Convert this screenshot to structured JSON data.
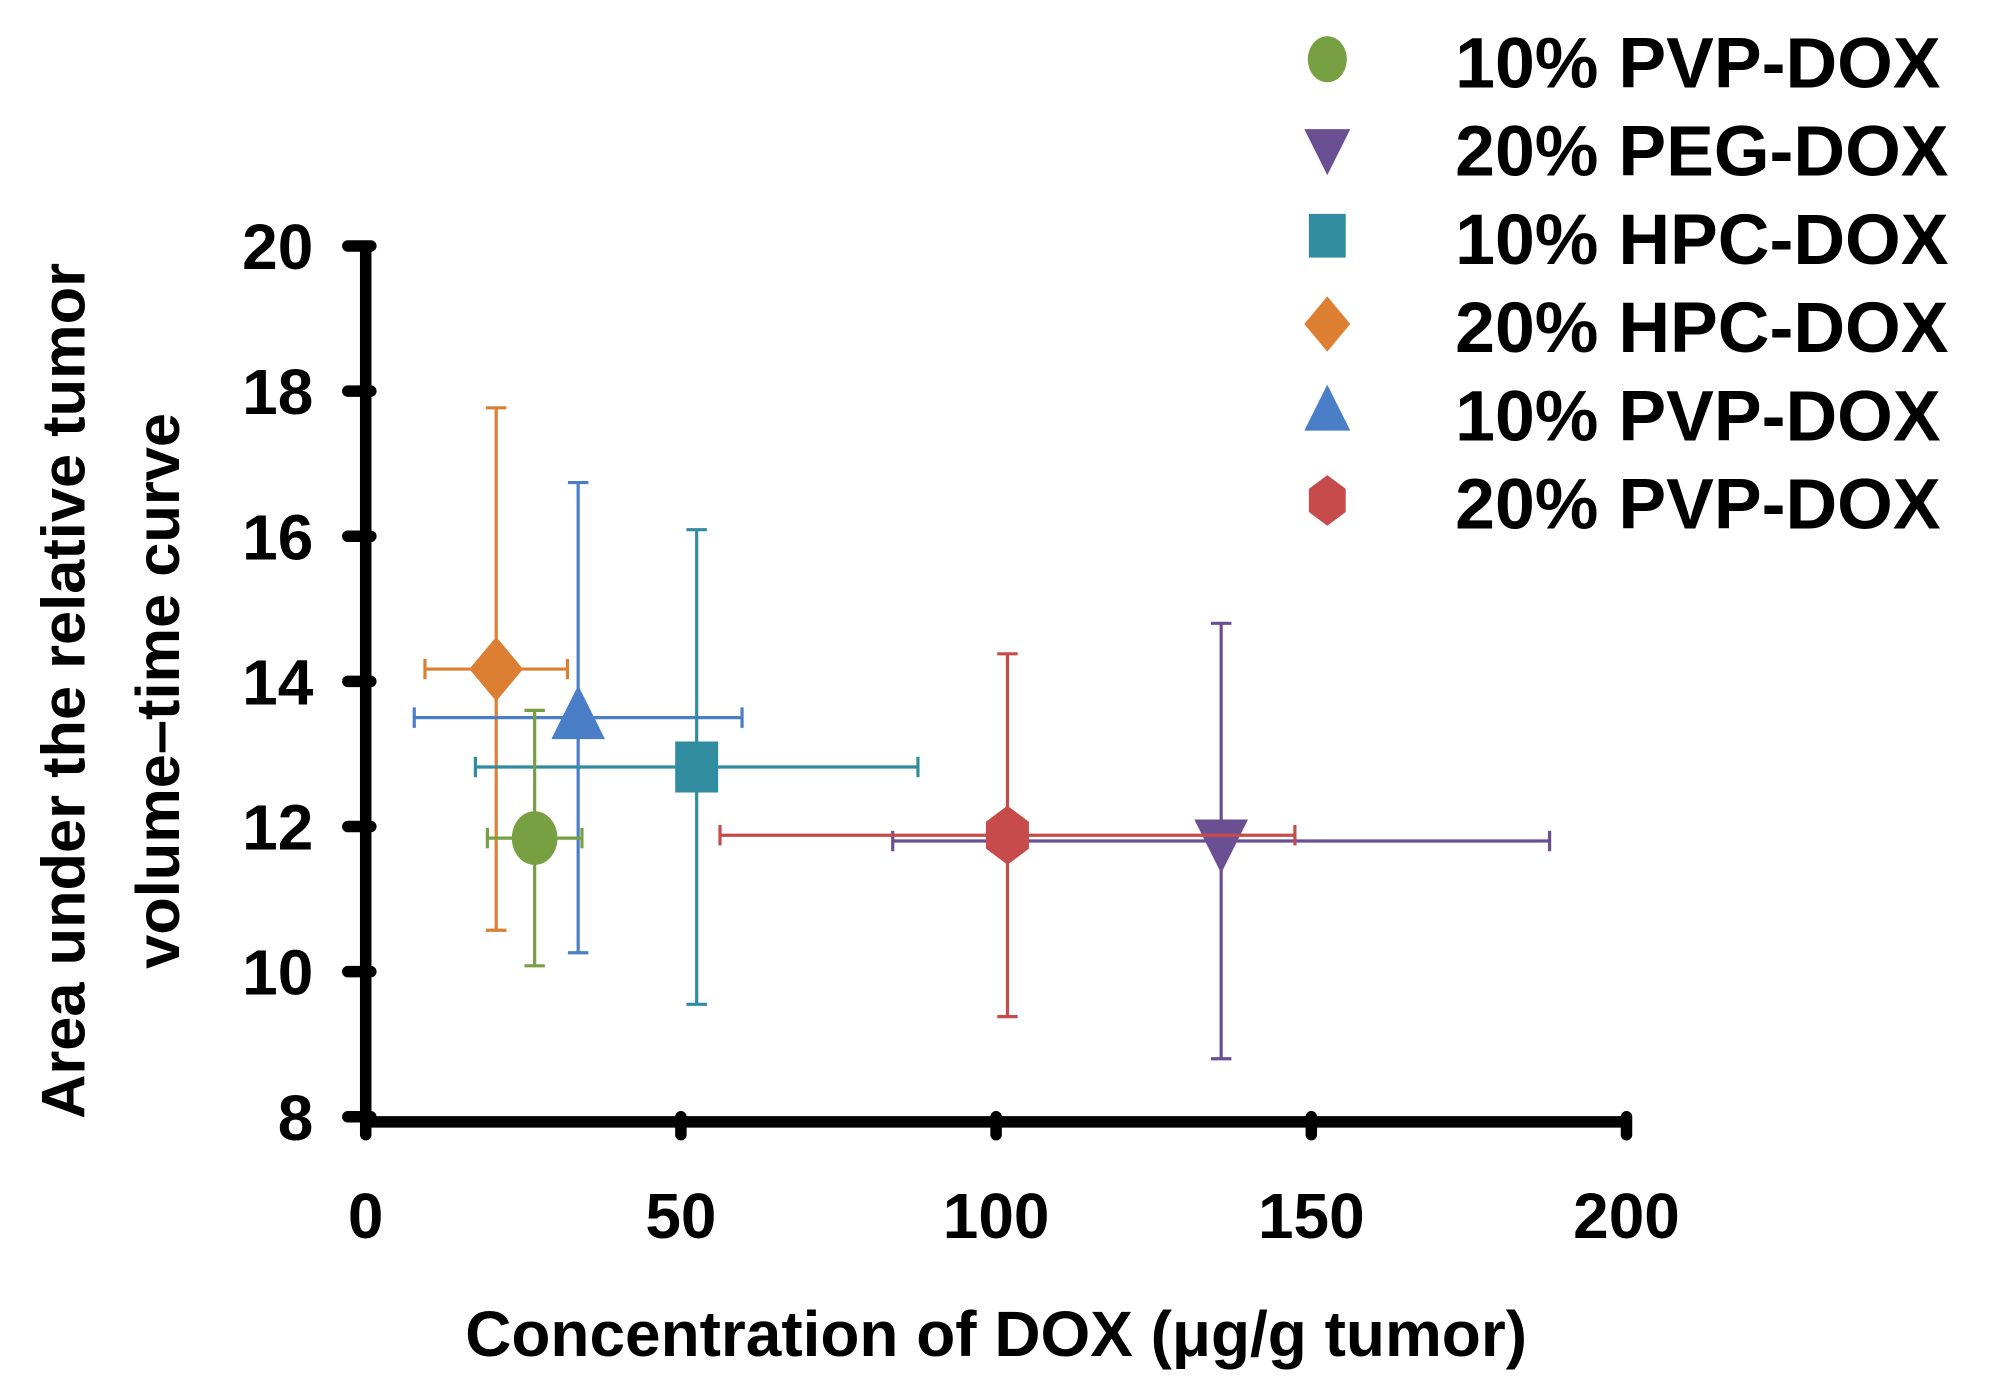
{
  "chart_data": {
    "type": "scatter",
    "title": "",
    "xlabel": "Concentration of DOX (μg/g tumor)",
    "ylabel_lines": [
      "Area under the relative tumor",
      "volume–time curve"
    ],
    "xlim": [
      0,
      200
    ],
    "ylim": [
      8,
      20
    ],
    "xticks": [
      0,
      50,
      100,
      150,
      200
    ],
    "yticks": [
      8,
      10,
      12,
      14,
      16,
      18,
      20
    ],
    "grid": false,
    "legend_position": "top-right",
    "series": [
      {
        "name": "10% PVP-DOX",
        "marker": "circle",
        "color": "#77a043",
        "x": 26.8,
        "y": 11.84,
        "xerr": 7.5,
        "yerr": 1.76
      },
      {
        "name": "20% PEG-DOX",
        "marker": "triangle-down",
        "color": "#6b4f93",
        "x": 135.7,
        "y": 11.8,
        "xerr": 52.1,
        "yerr": 3.0
      },
      {
        "name": "10% HPC-DOX",
        "marker": "square",
        "color": "#318ca0",
        "x": 52.5,
        "y": 12.82,
        "xerr": 35.1,
        "yerr": 3.27
      },
      {
        "name": "20% HPC-DOX",
        "marker": "diamond",
        "color": "#dd7f33",
        "x": 20.7,
        "y": 14.17,
        "xerr": 11.3,
        "yerr": 3.6
      },
      {
        "name": "10% PVP-DOX",
        "marker": "triangle-up",
        "color": "#4a7fc8",
        "x": 33.7,
        "y": 13.5,
        "xerr": 26.0,
        "yerr": 3.24
      },
      {
        "name": "20% PVP-DOX",
        "marker": "hexagon",
        "color": "#c84b4b",
        "x": 101.8,
        "y": 11.88,
        "xerr": 45.6,
        "yerr": 2.5
      }
    ]
  }
}
